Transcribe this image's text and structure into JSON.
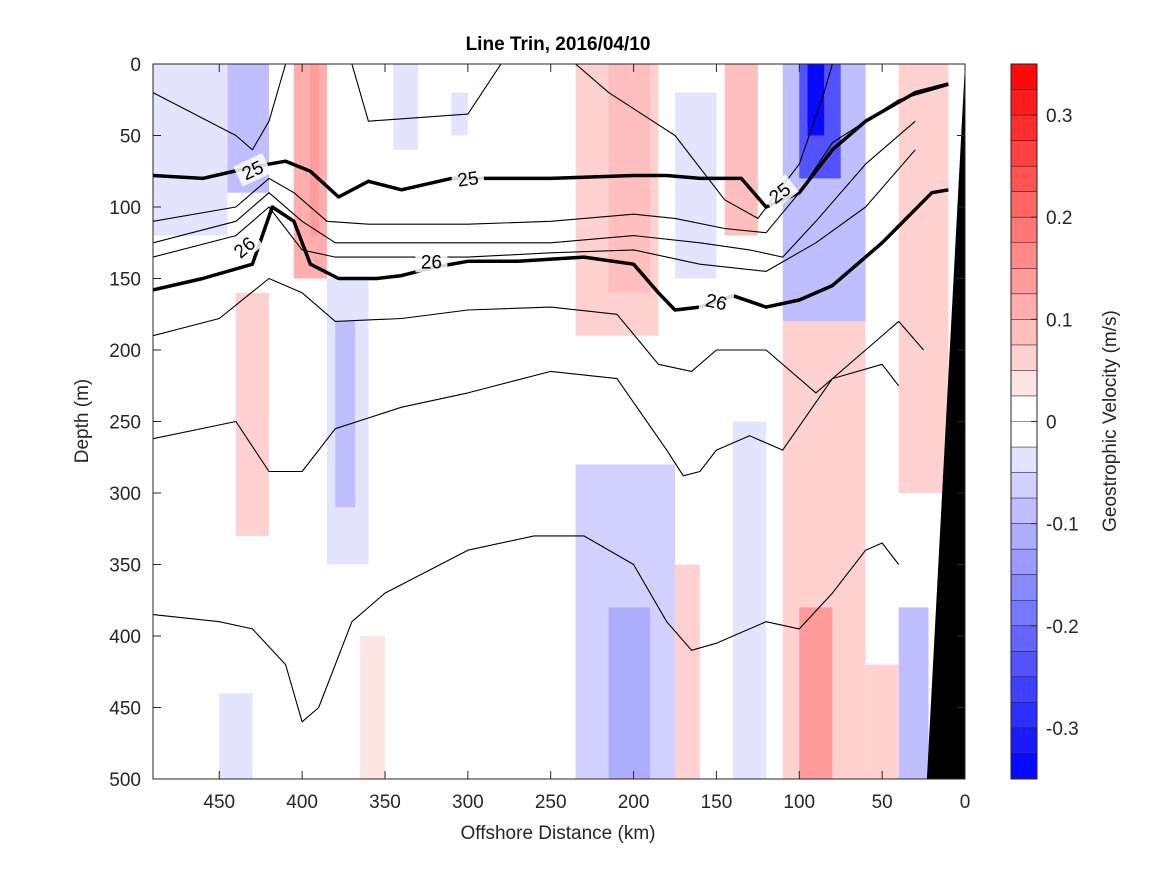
{
  "chart_data": {
    "type": "contour",
    "title": "Line Trin, 2016/04/10",
    "xlabel": "Offshore Distance (km)",
    "ylabel": "Depth (m)",
    "xlim": [
      490,
      0
    ],
    "ylim": [
      0,
      500
    ],
    "x_reversed": true,
    "y_reversed": true,
    "xticks": [
      450,
      400,
      350,
      300,
      250,
      200,
      150,
      100,
      50,
      0
    ],
    "yticks": [
      0,
      50,
      100,
      150,
      200,
      250,
      300,
      350,
      400,
      450,
      500
    ],
    "colorbar": {
      "label": "Geostrophic Velocity (m/s)",
      "range": [
        -0.35,
        0.35
      ],
      "ticks": [
        0.3,
        0.2,
        0.1,
        0,
        -0.1,
        -0.2,
        -0.3
      ],
      "levels": 28,
      "positive_color": "#ff0000",
      "negative_color": "#0000ff",
      "zero_color": "#ffffff"
    },
    "velocity_bands": [
      {
        "x0": 490,
        "x1": 445,
        "z0": 0,
        "z1": 120,
        "v": -0.03
      },
      {
        "x0": 445,
        "x1": 420,
        "z0": 0,
        "z1": 90,
        "v": -0.09
      },
      {
        "x0": 405,
        "x1": 385,
        "z0": 0,
        "z1": 150,
        "v": 0.1
      },
      {
        "x0": 395,
        "x1": 390,
        "z0": 0,
        "z1": 120,
        "v": 0.14
      },
      {
        "x0": 440,
        "x1": 420,
        "z0": 160,
        "z1": 330,
        "v": 0.05
      },
      {
        "x0": 385,
        "x1": 360,
        "z0": 150,
        "z1": 350,
        "v": -0.05
      },
      {
        "x0": 380,
        "x1": 368,
        "z0": 180,
        "z1": 310,
        "v": -0.09
      },
      {
        "x0": 345,
        "x1": 330,
        "z0": 0,
        "z1": 60,
        "v": -0.03
      },
      {
        "x0": 310,
        "x1": 300,
        "z0": 20,
        "z1": 50,
        "v": -0.03
      },
      {
        "x0": 235,
        "x1": 185,
        "z0": 0,
        "z1": 190,
        "v": 0.05
      },
      {
        "x0": 215,
        "x1": 190,
        "z0": 0,
        "z1": 160,
        "v": 0.09
      },
      {
        "x0": 175,
        "x1": 150,
        "z0": 20,
        "z1": 150,
        "v": -0.05
      },
      {
        "x0": 145,
        "x1": 125,
        "z0": 0,
        "z1": 120,
        "v": 0.09
      },
      {
        "x0": 110,
        "x1": 60,
        "z0": 0,
        "z1": 180,
        "v": -0.1
      },
      {
        "x0": 100,
        "x1": 75,
        "z0": 0,
        "z1": 80,
        "v": -0.24
      },
      {
        "x0": 95,
        "x1": 85,
        "z0": 0,
        "z1": 50,
        "v": -0.33
      },
      {
        "x0": 40,
        "x1": 10,
        "z0": 0,
        "z1": 300,
        "v": 0.07
      },
      {
        "x0": 235,
        "x1": 175,
        "z0": 280,
        "z1": 500,
        "v": -0.06
      },
      {
        "x0": 215,
        "x1": 190,
        "z0": 380,
        "z1": 500,
        "v": -0.11
      },
      {
        "x0": 175,
        "x1": 160,
        "z0": 350,
        "z1": 500,
        "v": 0.05
      },
      {
        "x0": 140,
        "x1": 120,
        "z0": 250,
        "z1": 500,
        "v": -0.04
      },
      {
        "x0": 110,
        "x1": 60,
        "z0": 180,
        "z1": 500,
        "v": 0.07
      },
      {
        "x0": 100,
        "x1": 80,
        "z0": 380,
        "z1": 500,
        "v": 0.13
      },
      {
        "x0": 60,
        "x1": 40,
        "z0": 420,
        "z1": 500,
        "v": 0.05
      },
      {
        "x0": 40,
        "x1": 22,
        "z0": 380,
        "z1": 500,
        "v": -0.08
      },
      {
        "x0": 450,
        "x1": 430,
        "z0": 440,
        "z1": 500,
        "v": -0.04
      },
      {
        "x0": 365,
        "x1": 350,
        "z0": 400,
        "z1": 500,
        "v": 0.03
      }
    ],
    "density_contours": [
      {
        "points": [
          [
            490,
            20
          ],
          [
            440,
            50
          ],
          [
            430,
            60
          ],
          [
            420,
            40
          ],
          [
            410,
            0
          ]
        ],
        "bold": false
      },
      {
        "points": [
          [
            370,
            0
          ],
          [
            360,
            40
          ],
          [
            300,
            35
          ],
          [
            280,
            0
          ]
        ],
        "bold": false
      },
      {
        "points": [
          [
            235,
            0
          ],
          [
            215,
            20
          ],
          [
            175,
            50
          ],
          [
            145,
            95
          ],
          [
            125,
            108
          ],
          [
            100,
            70
          ],
          [
            85,
            20
          ],
          [
            80,
            0
          ]
        ],
        "bold": false
      },
      {
        "points": [
          [
            490,
            110
          ],
          [
            440,
            100
          ],
          [
            420,
            80
          ],
          [
            405,
            90
          ],
          [
            385,
            110
          ],
          [
            360,
            112
          ],
          [
            300,
            112
          ],
          [
            250,
            110
          ],
          [
            200,
            105
          ],
          [
            175,
            108
          ],
          [
            145,
            115
          ],
          [
            120,
            118
          ],
          [
            100,
            90
          ],
          [
            80,
            55
          ],
          [
            40,
            25
          ],
          [
            10,
            15
          ]
        ],
        "bold": false
      },
      {
        "points": [
          [
            490,
            78
          ],
          [
            460,
            80
          ],
          [
            430,
            72
          ],
          [
            410,
            68
          ],
          [
            395,
            75
          ],
          [
            378,
            93
          ],
          [
            360,
            82
          ],
          [
            340,
            88
          ],
          [
            310,
            80
          ],
          [
            280,
            80
          ],
          [
            250,
            80
          ],
          [
            200,
            78
          ],
          [
            180,
            78
          ],
          [
            160,
            80
          ],
          [
            135,
            80
          ],
          [
            120,
            100
          ],
          [
            100,
            90
          ],
          [
            80,
            60
          ],
          [
            60,
            40
          ],
          [
            30,
            20
          ],
          [
            10,
            14
          ]
        ],
        "bold": true,
        "label": "25"
      },
      {
        "points": [
          [
            490,
            125
          ],
          [
            440,
            110
          ],
          [
            420,
            90
          ],
          [
            400,
            110
          ],
          [
            380,
            125
          ],
          [
            340,
            125
          ],
          [
            300,
            125
          ],
          [
            250,
            125
          ],
          [
            200,
            120
          ],
          [
            160,
            125
          ],
          [
            130,
            130
          ],
          [
            110,
            135
          ],
          [
            90,
            110
          ],
          [
            60,
            70
          ],
          [
            30,
            40
          ]
        ],
        "bold": false
      },
      {
        "points": [
          [
            490,
            135
          ],
          [
            440,
            120
          ],
          [
            420,
            100
          ],
          [
            400,
            130
          ],
          [
            380,
            135
          ],
          [
            340,
            135
          ],
          [
            300,
            135
          ],
          [
            250,
            132
          ],
          [
            200,
            130
          ],
          [
            160,
            140
          ],
          [
            120,
            145
          ],
          [
            90,
            125
          ],
          [
            60,
            100
          ],
          [
            30,
            60
          ]
        ],
        "bold": false
      },
      {
        "points": [
          [
            490,
            158
          ],
          [
            460,
            150
          ],
          [
            430,
            140
          ],
          [
            418,
            100
          ],
          [
            405,
            110
          ],
          [
            395,
            140
          ],
          [
            378,
            150
          ],
          [
            355,
            150
          ],
          [
            340,
            148
          ],
          [
            320,
            142
          ],
          [
            300,
            138
          ],
          [
            270,
            138
          ],
          [
            230,
            135
          ],
          [
            200,
            140
          ],
          [
            185,
            160
          ],
          [
            175,
            172
          ],
          [
            160,
            170
          ],
          [
            140,
            162
          ],
          [
            120,
            170
          ],
          [
            100,
            165
          ],
          [
            80,
            155
          ],
          [
            50,
            125
          ],
          [
            20,
            90
          ],
          [
            10,
            88
          ]
        ],
        "bold": true,
        "label": "26"
      },
      {
        "points": [
          [
            490,
            190
          ],
          [
            450,
            178
          ],
          [
            420,
            150
          ],
          [
            400,
            160
          ],
          [
            380,
            180
          ],
          [
            340,
            178
          ],
          [
            300,
            172
          ],
          [
            250,
            170
          ],
          [
            210,
            175
          ],
          [
            185,
            210
          ],
          [
            165,
            215
          ],
          [
            150,
            200
          ],
          [
            120,
            200
          ],
          [
            90,
            230
          ],
          [
            60,
            200
          ],
          [
            40,
            180
          ],
          [
            25,
            200
          ]
        ],
        "bold": false
      },
      {
        "points": [
          [
            490,
            262
          ],
          [
            440,
            250
          ],
          [
            420,
            285
          ],
          [
            400,
            285
          ],
          [
            380,
            255
          ],
          [
            340,
            240
          ],
          [
            300,
            230
          ],
          [
            250,
            215
          ],
          [
            210,
            220
          ],
          [
            180,
            270
          ],
          [
            170,
            288
          ],
          [
            160,
            285
          ],
          [
            150,
            270
          ],
          [
            130,
            260
          ],
          [
            110,
            270
          ],
          [
            80,
            220
          ],
          [
            50,
            210
          ],
          [
            40,
            225
          ]
        ],
        "bold": false
      },
      {
        "points": [
          [
            490,
            385
          ],
          [
            450,
            390
          ],
          [
            430,
            395
          ],
          [
            410,
            420
          ],
          [
            400,
            460
          ],
          [
            390,
            450
          ],
          [
            370,
            390
          ],
          [
            350,
            370
          ],
          [
            300,
            340
          ],
          [
            260,
            330
          ],
          [
            230,
            330
          ],
          [
            200,
            350
          ],
          [
            180,
            390
          ],
          [
            165,
            410
          ],
          [
            150,
            405
          ],
          [
            120,
            390
          ],
          [
            100,
            395
          ],
          [
            80,
            370
          ],
          [
            60,
            340
          ],
          [
            50,
            335
          ],
          [
            40,
            350
          ]
        ],
        "bold": false
      }
    ],
    "topography": {
      "points": [
        [
          0,
          0
        ],
        [
          0,
          500
        ],
        [
          23,
          500
        ]
      ],
      "color": "#000000"
    }
  }
}
